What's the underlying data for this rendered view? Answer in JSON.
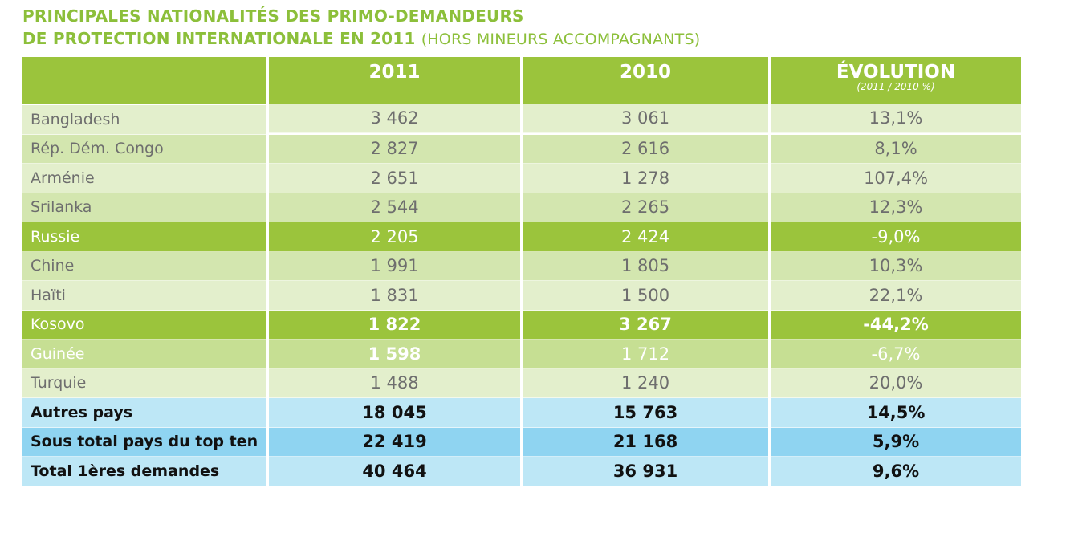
{
  "title": {
    "line1": "PRINCIPALES NATIONALITÉS DES PRIMO-DEMANDEURS",
    "line2": "DE PROTECTION INTERNATIONALE EN 2011",
    "line2_sub": "(HORS MINEURS ACCOMPAGNANTS)"
  },
  "chart_data": {
    "type": "table",
    "columns": [
      "",
      "2011",
      "2010",
      "ÉVOLUTION"
    ],
    "evolution_subheader": "(2011 / 2010 %)",
    "rows": [
      {
        "country": "Bangladesh",
        "y2011": "3 462",
        "y2010": "3 061",
        "evolution": "13,1%"
      },
      {
        "country": "Rép. Dém. Congo",
        "y2011": "2 827",
        "y2010": "2 616",
        "evolution": "8,1%"
      },
      {
        "country": "Arménie",
        "y2011": "2 651",
        "y2010": "1 278",
        "evolution": "107,4%"
      },
      {
        "country": "Srilanka",
        "y2011": "2 544",
        "y2010": "2 265",
        "evolution": "12,3%"
      },
      {
        "country": "Russie",
        "y2011": "2 205",
        "y2010": "2 424",
        "evolution": "-9,0%"
      },
      {
        "country": "Chine",
        "y2011": "1 991",
        "y2010": "1 805",
        "evolution": "10,3%"
      },
      {
        "country": "Haïti",
        "y2011": "1 831",
        "y2010": "1 500",
        "evolution": "22,1%"
      },
      {
        "country": "Kosovo",
        "y2011": "1 822",
        "y2010": "3 267",
        "evolution": "-44,2%"
      },
      {
        "country": "Guinée",
        "y2011": "1 598",
        "y2010": "1 712",
        "evolution": "-6,7%"
      },
      {
        "country": "Turquie",
        "y2011": "1 488",
        "y2010": "1 240",
        "evolution": "20,0%"
      }
    ],
    "totals": [
      {
        "label": "Autres pays",
        "y2011": "18 045",
        "y2010": "15 763",
        "evolution": "14,5%"
      },
      {
        "label": "Sous total pays du top ten",
        "y2011": "22 419",
        "y2010": "21 168",
        "evolution": "5,9%"
      },
      {
        "label": "Total 1ères demandes",
        "y2011": "40 464",
        "y2010": "36 931",
        "evolution": "9,6%"
      }
    ]
  },
  "colors": {
    "title_green": "#8cbf3a",
    "header_green": "#9bc43c",
    "row_light": "#e3efcc",
    "row_mid": "#d3e6af",
    "row_pale": "#c6df93",
    "total_light_blue": "#bde7f6",
    "total_dark_blue": "#8fd4f1"
  }
}
